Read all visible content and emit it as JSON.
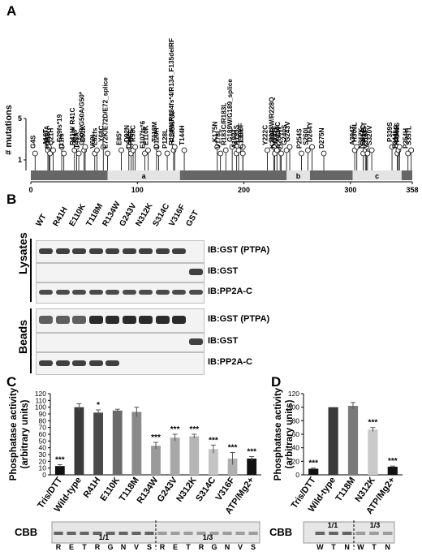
{
  "panelA": {
    "letter": "A",
    "ylabel": "# mutations",
    "y_ticks": [
      "1",
      "5"
    ],
    "x_ticks": [
      "0",
      "100",
      "200",
      "300",
      "358"
    ],
    "regions": [
      "a",
      "b",
      "c"
    ],
    "labels": [
      {
        "text": "G4S",
        "pos": 4
      },
      {
        "text": "A16T",
        "pos": 16
      },
      {
        "text": "P17A",
        "pos": 17
      },
      {
        "text": "P18S",
        "pos": 18
      },
      {
        "text": "Q21H",
        "pos": 21
      },
      {
        "text": "E29fs*19",
        "pos": 29
      },
      {
        "text": "I31fs",
        "pos": 31
      },
      {
        "text": "R41H/ R41C",
        "pos": 41
      },
      {
        "text": "Q43*",
        "pos": 43
      },
      {
        "text": "T45A",
        "pos": 45
      },
      {
        "text": "G50R/G50A/G50*",
        "pos": 50
      },
      {
        "text": "E51K",
        "pos": 51
      },
      {
        "text": "V60I",
        "pos": 60
      },
      {
        "text": "L62fs",
        "pos": 62
      },
      {
        "text": "Y68C",
        "pos": 68
      },
      {
        "text": "E72K/E72D/E72_splice",
        "pos": 72
      },
      {
        "text": "E85*",
        "pos": 85
      },
      {
        "text": "D92N",
        "pos": 92
      },
      {
        "text": "C94S",
        "pos": 94
      },
      {
        "text": "P96S",
        "pos": 96
      },
      {
        "text": "R98C",
        "pos": 98
      },
      {
        "text": "E107fs*6",
        "pos": 107
      },
      {
        "text": "E110K",
        "pos": 110
      },
      {
        "text": "T118M",
        "pos": 118
      },
      {
        "text": "D120H",
        "pos": 120
      },
      {
        "text": "R134W/R134fs*4/R134_F135delRF",
        "pos": 134
      },
      {
        "text": "F135fs*39",
        "pos": 135
      },
      {
        "text": "P128L",
        "pos": 128
      },
      {
        "text": "T144H",
        "pos": 144
      },
      {
        "text": "K175N",
        "pos": 175
      },
      {
        "text": "V178L",
        "pos": 178
      },
      {
        "text": "R183C/R183L",
        "pos": 183
      },
      {
        "text": "G189W/G189_splice",
        "pos": 189
      },
      {
        "text": "A193T",
        "pos": 193
      },
      {
        "text": "A195S",
        "pos": 195
      },
      {
        "text": "L199F",
        "pos": 199
      },
      {
        "text": "C199Y",
        "pos": 199
      },
      {
        "text": "Y222C",
        "pos": 222
      },
      {
        "text": "R228W/R228Q",
        "pos": 228
      },
      {
        "text": "K229E",
        "pos": 229
      },
      {
        "text": "V231F",
        "pos": 231
      },
      {
        "text": "Y234C",
        "pos": 234
      },
      {
        "text": "R235W",
        "pos": 235
      },
      {
        "text": "G240S",
        "pos": 240
      },
      {
        "text": "G243V",
        "pos": 243
      },
      {
        "text": "P254S",
        "pos": 254
      },
      {
        "text": "S260L",
        "pos": 260
      },
      {
        "text": "D264Y",
        "pos": 264
      },
      {
        "text": "D275N",
        "pos": 275
      },
      {
        "text": "A304T",
        "pos": 304
      },
      {
        "text": "H306L",
        "pos": 306
      },
      {
        "text": "N312K",
        "pos": 312
      },
      {
        "text": "S314C",
        "pos": 314
      },
      {
        "text": "A315T",
        "pos": 315
      },
      {
        "text": "V316F",
        "pos": 316
      },
      {
        "text": "S320V",
        "pos": 320
      },
      {
        "text": "P339S",
        "pos": 339
      },
      {
        "text": "F344L",
        "pos": 344
      },
      {
        "text": "K345R",
        "pos": 345
      },
      {
        "text": "F346S",
        "pos": 346
      },
      {
        "text": "P354H",
        "pos": 354
      },
      {
        "text": "S357L",
        "pos": 357
      }
    ]
  },
  "panelB": {
    "letter": "B",
    "lanes": [
      "WT",
      "R41H",
      "E110K",
      "T118M",
      "R134W",
      "G243V",
      "N312K",
      "S314C",
      "V316F",
      "GST"
    ],
    "lysates_label": "Lysates",
    "beads_label": "Beads",
    "lysate_blots": [
      "IB:GST (PTPA)",
      "IB:GST",
      "IB:PP2A-C"
    ],
    "bead_blots": [
      "IB:GST (PTPA)",
      "IB:GST",
      "IB:PP2A-C"
    ]
  },
  "panelC": {
    "letter": "C",
    "ylabel_line1": "Phosphatase activity",
    "ylabel_line2": "(arbitrary units)",
    "cbb_label": "CBB",
    "cbb_ratio_left": "1/1",
    "cbb_ratio_right": "1/3",
    "cbb_lanes": [
      "R",
      "E",
      "T",
      "R",
      "G",
      "N",
      "V",
      "S",
      "R",
      "E",
      "T",
      "R",
      "G",
      "N",
      "V",
      "S"
    ],
    "chart_data": {
      "type": "bar",
      "categories": [
        "Tris/DTT",
        "Wild-type",
        "R41H",
        "E110K",
        "T118M",
        "R134W",
        "G243V",
        "N312K",
        "S314C",
        "V316F",
        "ATP/Mg2+"
      ],
      "values": [
        13,
        100,
        92,
        95,
        93,
        43,
        55,
        57,
        38,
        24,
        24
      ],
      "errors": [
        2,
        5,
        4,
        2,
        7,
        5,
        5,
        3,
        6,
        9,
        3
      ],
      "significance": [
        "***",
        "",
        "*",
        "",
        "",
        "***",
        "***",
        "***",
        "***",
        "***",
        "***"
      ],
      "colors": [
        "#111111",
        "#3a3a3a",
        "#4a4a4a",
        "#6a6a6a",
        "#8a8a8a",
        "#9a9a9a",
        "#a8a8a8",
        "#b5b5b5",
        "#c4c4c4",
        "#b0b0b0",
        "#111111"
      ],
      "ylim": [
        0,
        120
      ],
      "yticks": [
        0,
        10,
        20,
        30,
        40,
        50,
        60,
        70,
        80,
        90,
        100,
        110,
        120
      ]
    }
  },
  "panelD": {
    "letter": "D",
    "ylabel_line1": "Phosphatase activity",
    "ylabel_line2": "(arbitrary units)",
    "cbb_label": "CBB",
    "cbb_ratio_left": "1/1",
    "cbb_ratio_right": "1/3",
    "cbb_lanes": [
      "W",
      "T",
      "N",
      "W",
      "T",
      "N"
    ],
    "chart_data": {
      "type": "bar",
      "categories": [
        "Tris/DTT",
        "Wild-type",
        "T118M",
        "N312K",
        "ATP/Mg2+"
      ],
      "values": [
        9,
        100,
        102,
        67,
        12
      ],
      "errors": [
        1,
        0,
        5,
        3,
        1
      ],
      "significance": [
        "***",
        "",
        "",
        "***",
        "***"
      ],
      "colors": [
        "#111111",
        "#3a3a3a",
        "#7a7a7a",
        "#c9c9c9",
        "#111111"
      ],
      "ylim": [
        0,
        120
      ],
      "yticks": [
        0,
        20,
        40,
        60,
        80,
        100,
        120
      ]
    }
  }
}
